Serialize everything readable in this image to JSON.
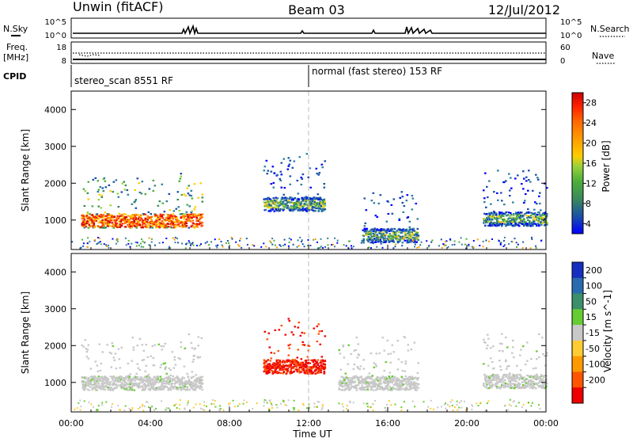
{
  "header": {
    "station": "Unwin (fitACF)",
    "beam": "Beam 03",
    "date": "12/Jul/2012"
  },
  "top_panels": {
    "nsky_label": "N.Sky",
    "nsearch_label": "N.Search",
    "freq_label_1": "Freq.",
    "freq_label_2": "[MHz]",
    "nave_label": "Nave",
    "cpid_label": "CPID",
    "nsky_ticks": [
      "10^5",
      "10^0"
    ],
    "nsearch_ticks": [
      "10^5",
      "10^0"
    ],
    "freq_ticks": [
      "18",
      "8"
    ],
    "nave_ticks": [
      "60",
      "0"
    ],
    "cpid_segments": [
      {
        "label": "stereo_scan 8551 RF",
        "start_hour": 0,
        "end_hour": 12
      },
      {
        "label": "normal (fast stereo) 153 RF",
        "start_hour": 12,
        "end_hour": 24
      }
    ]
  },
  "chart_data": [
    {
      "type": "heatmap",
      "panel": "power",
      "ylabel": "Slant Range [km]",
      "yticks": [
        "1000",
        "2000",
        "3000",
        "4000"
      ],
      "ylim": [
        200,
        4500
      ],
      "xlim": [
        0,
        24
      ],
      "colorbar_label": "Power [dB]",
      "colorbar_ticks": [
        "4",
        "8",
        "12",
        "16",
        "20",
        "24",
        "28"
      ],
      "colorbar_colors": [
        "#0000ff",
        "#1a4fa8",
        "#2e7fa0",
        "#3c8a5a",
        "#4caf3a",
        "#9ad23a",
        "#ffcc00",
        "#ff9900",
        "#ff6600",
        "#ff2200",
        "#cc0000"
      ],
      "features": [
        {
          "start_hour": 0.5,
          "end_hour": 6.6,
          "range_km": 1000,
          "level": "high"
        },
        {
          "start_hour": 9.7,
          "end_hour": 12.8,
          "range_km": 1450,
          "level": "medium"
        },
        {
          "start_hour": 14.7,
          "end_hour": 17.5,
          "range_km": 600,
          "level": "medium"
        },
        {
          "start_hour": 20.8,
          "end_hour": 24,
          "range_km": 1050,
          "level": "medium"
        }
      ]
    },
    {
      "type": "heatmap",
      "panel": "velocity",
      "ylabel": "Slant Range [km]",
      "yticks": [
        "1000",
        "2000",
        "3000",
        "4000"
      ],
      "ylim": [
        200,
        4500
      ],
      "xlim": [
        0,
        24
      ],
      "xlabel": "Time UT",
      "xticks": [
        "00:00",
        "04:00",
        "08:00",
        "12:00",
        "16:00",
        "20:00",
        "00:00"
      ],
      "colorbar_label": "Velocity [m s^-1]",
      "colorbar_ticks": [
        "200",
        "100",
        "50",
        "15",
        "-15",
        "-50",
        "-100",
        "-200"
      ],
      "colorbar_colors": [
        "#1530c0",
        "#2a6bb0",
        "#3b8f6a",
        "#66cc33",
        "#c8c8c8",
        "#ffcc33",
        "#ff9900",
        "#ff5500",
        "#ee0000"
      ],
      "features": [
        {
          "start_hour": 0.5,
          "end_hour": 6.6,
          "range_km": 1000,
          "velocity": 0
        },
        {
          "start_hour": 9.7,
          "end_hour": 12.8,
          "range_km": 1450,
          "velocity": -150
        },
        {
          "start_hour": 13.5,
          "end_hour": 17.5,
          "range_km": 1000,
          "velocity": 0
        },
        {
          "start_hour": 20.8,
          "end_hour": 24,
          "range_km": 1050,
          "velocity": 0
        }
      ]
    }
  ]
}
